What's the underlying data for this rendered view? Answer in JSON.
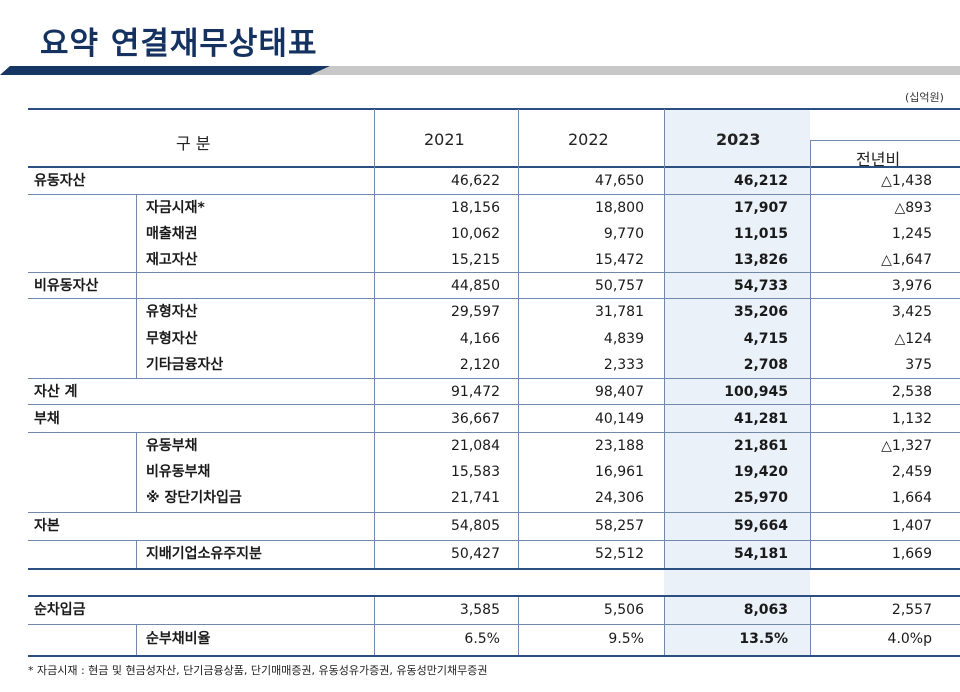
{
  "title": "요약 연결재무상태표",
  "unit": "(십억원)",
  "header": {
    "category": "구        분",
    "y2021": "2021",
    "y2022": "2022",
    "y2023": "2023",
    "yoy": "전년비"
  },
  "rows": [
    {
      "label": "유동자산",
      "indent": false,
      "v2021": "46,622",
      "v2022": "47,650",
      "v2023": "46,212",
      "yoy": "△1,438"
    },
    {
      "label": "자금시재*",
      "indent": true,
      "v2021": "18,156",
      "v2022": "18,800",
      "v2023": "17,907",
      "yoy": "△893"
    },
    {
      "label": "매출채권",
      "indent": true,
      "v2021": "10,062",
      "v2022": "9,770",
      "v2023": "11,015",
      "yoy": "1,245"
    },
    {
      "label": "재고자산",
      "indent": true,
      "v2021": "15,215",
      "v2022": "15,472",
      "v2023": "13,826",
      "yoy": "△1,647"
    },
    {
      "label": "비유동자산",
      "indent": false,
      "v2021": "44,850",
      "v2022": "50,757",
      "v2023": "54,733",
      "yoy": "3,976"
    },
    {
      "label": "유형자산",
      "indent": true,
      "v2021": "29,597",
      "v2022": "31,781",
      "v2023": "35,206",
      "yoy": "3,425"
    },
    {
      "label": "무형자산",
      "indent": true,
      "v2021": "4,166",
      "v2022": "4,839",
      "v2023": "4,715",
      "yoy": "△124"
    },
    {
      "label": "기타금융자산",
      "indent": true,
      "v2021": "2,120",
      "v2022": "2,333",
      "v2023": "2,708",
      "yoy": "375"
    },
    {
      "label": "자산 계",
      "indent": false,
      "v2021": "91,472",
      "v2022": "98,407",
      "v2023": "100,945",
      "yoy": "2,538"
    },
    {
      "label": "부채",
      "indent": false,
      "v2021": "36,667",
      "v2022": "40,149",
      "v2023": "41,281",
      "yoy": "1,132"
    },
    {
      "label": "유동부채",
      "indent": true,
      "v2021": "21,084",
      "v2022": "23,188",
      "v2023": "21,861",
      "yoy": "△1,327"
    },
    {
      "label": "비유동부채",
      "indent": true,
      "v2021": "15,583",
      "v2022": "16,961",
      "v2023": "19,420",
      "yoy": "2,459"
    },
    {
      "label": "※ 장단기차입금",
      "indent": true,
      "v2021": "21,741",
      "v2022": "24,306",
      "v2023": "25,970",
      "yoy": "1,664"
    },
    {
      "label": "자본",
      "indent": false,
      "v2021": "54,805",
      "v2022": "58,257",
      "v2023": "59,664",
      "yoy": "1,407"
    },
    {
      "label": "지배기업소유주지분",
      "indent": true,
      "v2021": "50,427",
      "v2022": "52,512",
      "v2023": "54,181",
      "yoy": "1,669"
    },
    {
      "label": "순차입금",
      "indent": false,
      "v2021": "3,585",
      "v2022": "5,506",
      "v2023": "8,063",
      "yoy": "2,557"
    },
    {
      "label": "순부채비율",
      "indent": true,
      "v2021": "6.5%",
      "v2022": "9.5%",
      "v2023": "13.5%",
      "yoy": "4.0%p"
    }
  ],
  "footnote": "* 자금시재 : 현금 및 현금성자산, 단기금융상품, 단기매매증권, 유동성유가증권, 유동성만기채무증권"
}
